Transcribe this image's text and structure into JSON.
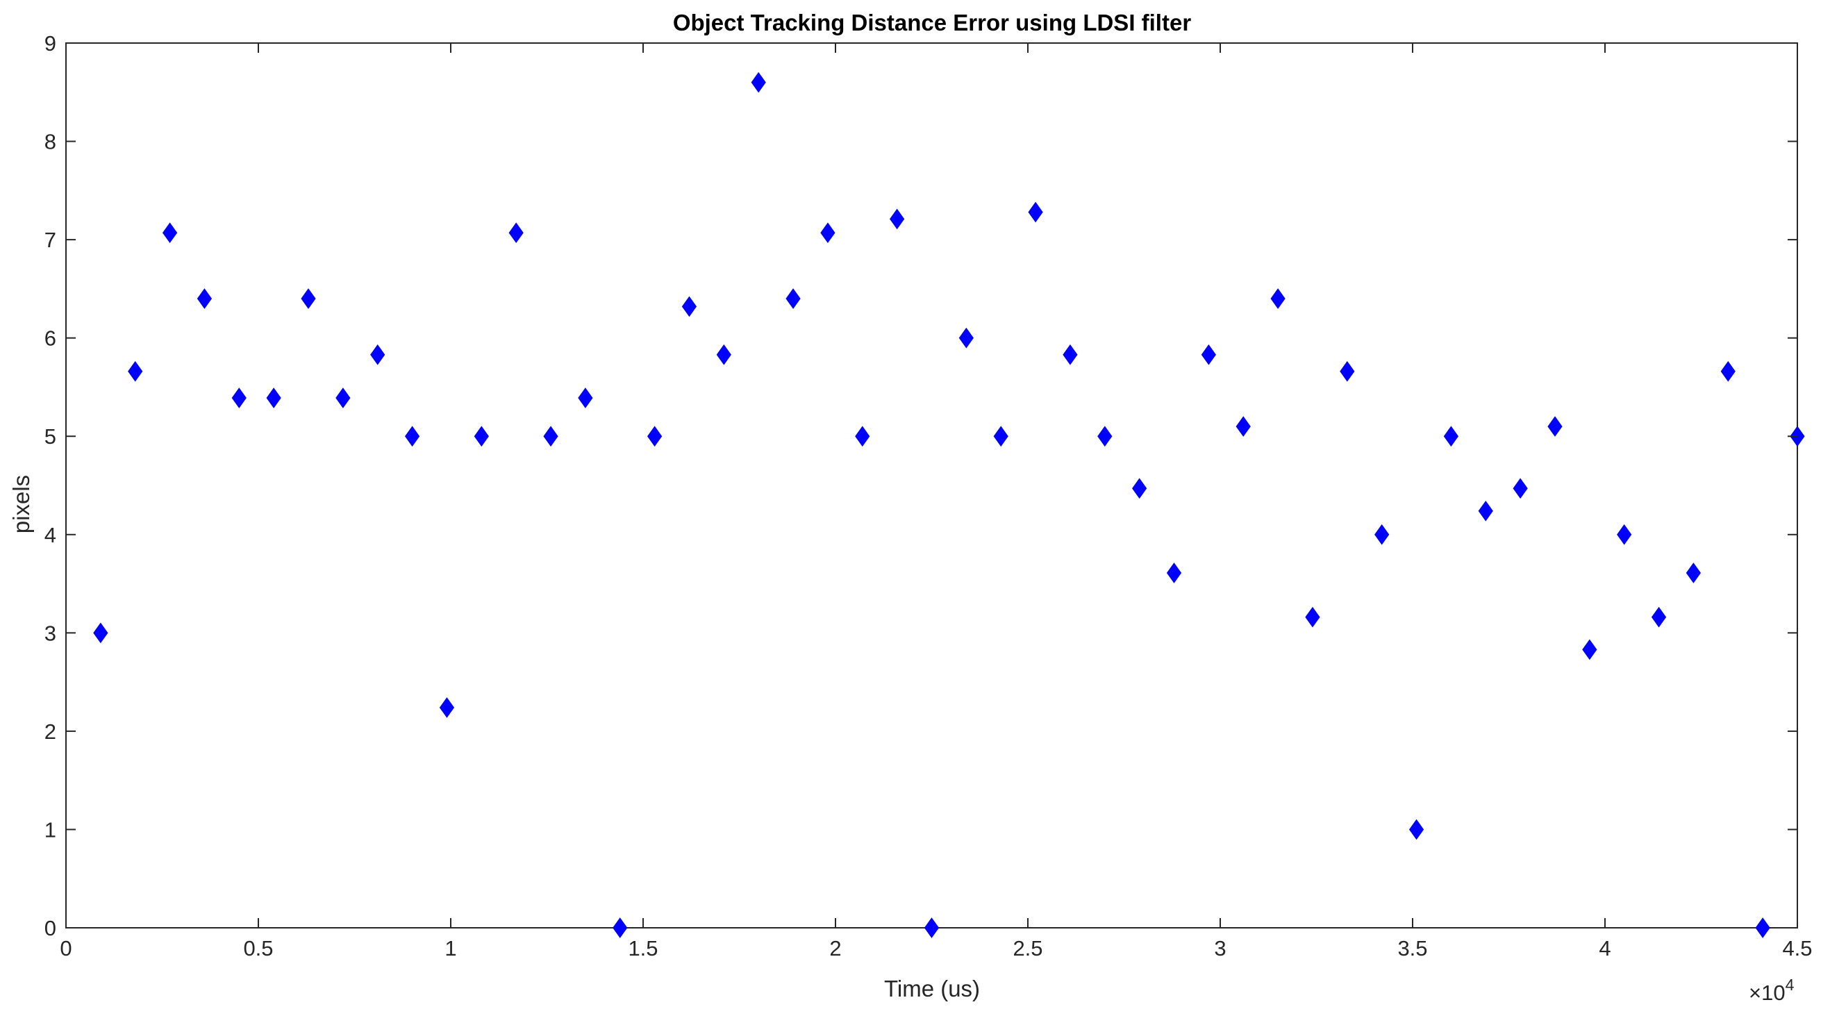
{
  "chart_data": {
    "type": "scatter",
    "title": "Object Tracking Distance Error using LDSI filter",
    "xlabel": "Time (us)",
    "ylabel": "pixels",
    "x_exponent_label": "×10",
    "x_exponent_power": "4",
    "xlim": [
      0,
      45000
    ],
    "ylim": [
      0,
      9
    ],
    "x_ticks": [
      0,
      5000,
      10000,
      15000,
      20000,
      25000,
      30000,
      35000,
      40000,
      45000
    ],
    "x_tick_labels": [
      "0",
      "0.5",
      "1",
      "1.5",
      "2",
      "2.5",
      "3",
      "3.5",
      "4",
      "4.5"
    ],
    "y_ticks": [
      0,
      1,
      2,
      3,
      4,
      5,
      6,
      7,
      8,
      9
    ],
    "y_tick_labels": [
      "0",
      "1",
      "2",
      "3",
      "4",
      "5",
      "6",
      "7",
      "8",
      "9"
    ],
    "grid": false,
    "marker": "diamond",
    "marker_color": "#0000ff",
    "series": [
      {
        "x": [
          900,
          1800,
          2700,
          3600,
          4500,
          5400,
          6300,
          7200,
          8100,
          9000,
          9900,
          10800,
          11700,
          12600,
          13500,
          14400,
          15300,
          16200,
          17100,
          18000,
          18900,
          19800,
          20700,
          21600,
          22500,
          23400,
          24300,
          25200,
          26100,
          27000,
          27900,
          28800,
          29700,
          30600,
          31500,
          32400,
          33300,
          34200,
          35100,
          36000,
          36900,
          37800,
          38700,
          39600,
          40500,
          41400,
          42300,
          43200,
          44100,
          45000
        ],
        "y": [
          3.0,
          5.66,
          7.07,
          6.4,
          5.39,
          5.39,
          6.4,
          5.39,
          5.83,
          5.0,
          2.24,
          5.0,
          7.07,
          5.0,
          5.39,
          0.0,
          5.0,
          6.32,
          5.83,
          8.6,
          6.4,
          7.07,
          5.0,
          7.21,
          0.0,
          6.0,
          5.0,
          7.28,
          5.83,
          5.0,
          4.47,
          3.61,
          5.83,
          5.1,
          6.4,
          3.16,
          5.66,
          4.0,
          1.0,
          5.0,
          4.24,
          4.47,
          5.1,
          2.83,
          4.0,
          3.16,
          3.61,
          5.66,
          0.0,
          5.0
        ]
      }
    ]
  }
}
